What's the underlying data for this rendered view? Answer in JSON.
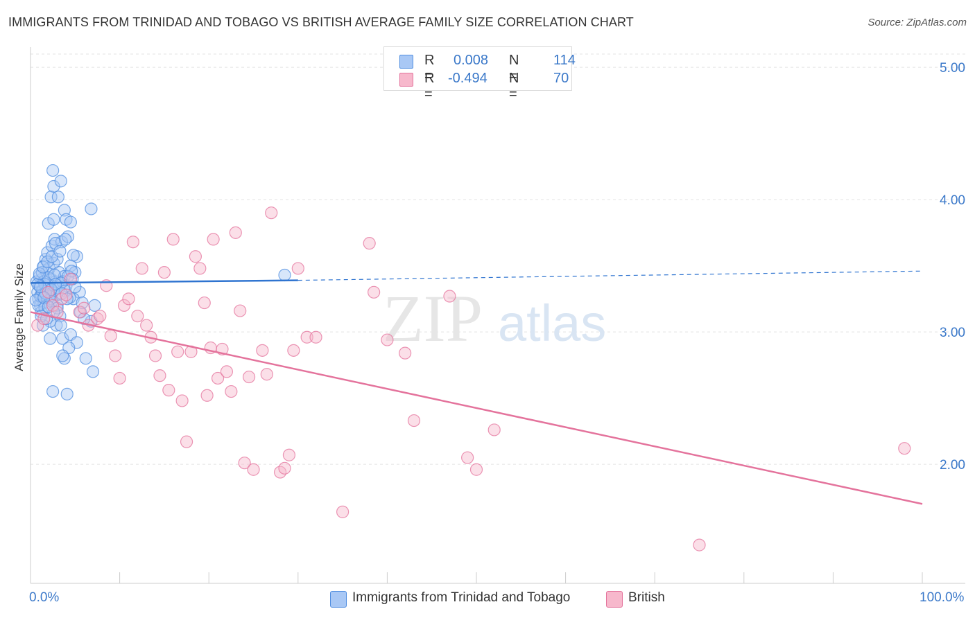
{
  "header": {
    "title": "IMMIGRANTS FROM TRINIDAD AND TOBAGO VS BRITISH AVERAGE FAMILY SIZE CORRELATION CHART",
    "source": "Source: ZipAtlas.com"
  },
  "legend": {
    "rows": [
      {
        "r_label": "R =",
        "r_value": "0.008",
        "n_label": "N =",
        "n_value": "114",
        "color": "#a9c8f5"
      },
      {
        "r_label": "R =",
        "r_value": "-0.494",
        "n_label": "N =",
        "n_value": "70",
        "color": "#f7b8cc"
      }
    ]
  },
  "watermark": {
    "zip": "ZIP",
    "atlas": "atlas"
  },
  "chart_data": {
    "type": "scatter",
    "ylabel": "Average Family Size",
    "xlim": [
      0,
      100
    ],
    "ylim": [
      1.1,
      5.1
    ],
    "x_tick_labels": {
      "min": "0.0%",
      "max": "100.0%"
    },
    "y_ticks": [
      2.0,
      3.0,
      4.0,
      5.0
    ],
    "y_tick_labels": [
      "2.00",
      "3.00",
      "4.00",
      "5.00"
    ],
    "grid": true,
    "legend_position": "top-center",
    "series": [
      {
        "name": "Immigrants from Trinidad and Tobago",
        "color": "#4f8de0",
        "fill": "#a9c8f5",
        "trend": {
          "x": [
            0,
            30
          ],
          "y": [
            3.37,
            3.39
          ],
          "dashed_to_x": 100,
          "dashed_to_y": 3.46
        },
        "points": [
          [
            0.8,
            3.3
          ],
          [
            0.9,
            3.25
          ],
          [
            1.0,
            3.35
          ],
          [
            1.1,
            3.2
          ],
          [
            1.2,
            3.28
          ],
          [
            1.3,
            3.4
          ],
          [
            1.4,
            3.32
          ],
          [
            1.5,
            3.22
          ],
          [
            0.7,
            3.38
          ],
          [
            1.0,
            3.42
          ],
          [
            1.2,
            3.15
          ],
          [
            1.6,
            3.3
          ],
          [
            1.8,
            3.45
          ],
          [
            2.0,
            3.35
          ],
          [
            1.5,
            3.5
          ],
          [
            1.7,
            3.55
          ],
          [
            2.2,
            3.25
          ],
          [
            2.5,
            3.3
          ],
          [
            2.3,
            3.4
          ],
          [
            2.8,
            3.38
          ],
          [
            3.0,
            3.2
          ],
          [
            2.1,
            3.48
          ],
          [
            2.6,
            3.52
          ],
          [
            3.2,
            3.45
          ],
          [
            1.9,
            3.6
          ],
          [
            2.4,
            3.65
          ],
          [
            2.7,
            3.7
          ],
          [
            3.5,
            3.68
          ],
          [
            4.2,
            3.72
          ],
          [
            3.0,
            3.55
          ],
          [
            4.5,
            3.5
          ],
          [
            5.0,
            3.45
          ],
          [
            3.8,
            3.42
          ],
          [
            4.0,
            3.35
          ],
          [
            5.5,
            3.3
          ],
          [
            4.8,
            3.25
          ],
          [
            3.3,
            3.12
          ],
          [
            2.9,
            3.05
          ],
          [
            2.2,
            3.08
          ],
          [
            3.6,
            2.95
          ],
          [
            4.5,
            2.98
          ],
          [
            5.2,
            2.92
          ],
          [
            3.8,
            2.8
          ],
          [
            4.3,
            2.88
          ],
          [
            2.5,
            2.55
          ],
          [
            4.1,
            2.53
          ],
          [
            5.6,
            3.15
          ],
          [
            6.8,
            3.08
          ],
          [
            6.2,
            2.8
          ],
          [
            7.0,
            2.7
          ],
          [
            7.2,
            3.2
          ],
          [
            2.0,
            3.82
          ],
          [
            2.6,
            3.85
          ],
          [
            3.8,
            3.92
          ],
          [
            4.0,
            3.85
          ],
          [
            4.5,
            3.83
          ],
          [
            2.3,
            4.02
          ],
          [
            3.1,
            4.02
          ],
          [
            2.6,
            4.1
          ],
          [
            3.4,
            4.14
          ],
          [
            2.5,
            4.22
          ],
          [
            6.8,
            3.93
          ],
          [
            2.8,
            3.67
          ],
          [
            3.9,
            3.7
          ],
          [
            5.2,
            3.57
          ],
          [
            4.8,
            3.58
          ],
          [
            1.6,
            3.18
          ],
          [
            1.4,
            3.05
          ],
          [
            2.9,
            3.28
          ],
          [
            3.2,
            3.33
          ],
          [
            3.6,
            3.38
          ],
          [
            4.2,
            3.42
          ],
          [
            4.6,
            3.46
          ],
          [
            1.3,
            3.45
          ],
          [
            1.5,
            3.38
          ],
          [
            1.9,
            3.33
          ],
          [
            2.1,
            3.27
          ],
          [
            2.4,
            3.23
          ],
          [
            3.0,
            3.18
          ],
          [
            0.9,
            3.2
          ],
          [
            1.1,
            3.27
          ],
          [
            1.3,
            3.31
          ],
          [
            1.6,
            3.36
          ],
          [
            2.0,
            3.41
          ],
          [
            2.7,
            3.43
          ],
          [
            3.4,
            3.37
          ],
          [
            3.9,
            3.31
          ],
          [
            4.4,
            3.26
          ],
          [
            5.0,
            3.34
          ],
          [
            1.2,
            3.12
          ],
          [
            1.8,
            3.1
          ],
          [
            2.6,
            3.15
          ],
          [
            5.8,
            3.22
          ],
          [
            6.0,
            3.1
          ],
          [
            2.2,
            2.95
          ],
          [
            3.6,
            2.82
          ],
          [
            0.6,
            3.24
          ],
          [
            0.8,
            3.36
          ],
          [
            1.0,
            3.44
          ],
          [
            1.4,
            3.49
          ],
          [
            1.9,
            3.53
          ],
          [
            2.4,
            3.57
          ],
          [
            3.3,
            3.61
          ],
          [
            4.7,
            3.4
          ],
          [
            1.7,
            3.29
          ],
          [
            2.3,
            3.32
          ],
          [
            2.8,
            3.36
          ],
          [
            3.5,
            3.29
          ],
          [
            4.1,
            3.25
          ],
          [
            1.1,
            3.34
          ],
          [
            1.5,
            3.26
          ],
          [
            2.0,
            3.19
          ],
          [
            28.5,
            3.43
          ],
          [
            3.4,
            3.05
          ]
        ]
      },
      {
        "name": "British",
        "color": "#e4739c",
        "fill": "#f7b8cc",
        "trend": {
          "x": [
            0,
            100
          ],
          "y": [
            3.15,
            1.7
          ]
        },
        "points": [
          [
            0.8,
            3.05
          ],
          [
            1.5,
            3.1
          ],
          [
            2.5,
            3.2
          ],
          [
            3.5,
            3.25
          ],
          [
            4.5,
            3.4
          ],
          [
            5.5,
            3.15
          ],
          [
            6.5,
            3.05
          ],
          [
            7.5,
            3.1
          ],
          [
            8.5,
            3.35
          ],
          [
            9.0,
            2.97
          ],
          [
            9.5,
            2.82
          ],
          [
            10.0,
            2.65
          ],
          [
            10.5,
            3.2
          ],
          [
            11.0,
            3.25
          ],
          [
            11.5,
            3.68
          ],
          [
            12.0,
            3.12
          ],
          [
            12.5,
            3.48
          ],
          [
            13.0,
            3.05
          ],
          [
            13.5,
            2.96
          ],
          [
            14.0,
            2.82
          ],
          [
            14.5,
            2.67
          ],
          [
            15.0,
            3.45
          ],
          [
            15.5,
            2.56
          ],
          [
            16.0,
            3.7
          ],
          [
            16.5,
            2.85
          ],
          [
            17.0,
            2.48
          ],
          [
            17.5,
            2.17
          ],
          [
            18.0,
            2.85
          ],
          [
            18.5,
            3.57
          ],
          [
            19.0,
            3.48
          ],
          [
            19.5,
            3.22
          ],
          [
            19.8,
            2.52
          ],
          [
            20.5,
            3.7
          ],
          [
            21.0,
            2.65
          ],
          [
            21.5,
            2.87
          ],
          [
            22.0,
            2.7
          ],
          [
            22.5,
            2.55
          ],
          [
            23.0,
            3.75
          ],
          [
            23.5,
            3.16
          ],
          [
            24.0,
            2.01
          ],
          [
            25.0,
            1.96
          ],
          [
            26.0,
            2.86
          ],
          [
            27.0,
            3.9
          ],
          [
            28.0,
            1.94
          ],
          [
            28.5,
            1.97
          ],
          [
            29.0,
            2.07
          ],
          [
            29.5,
            2.86
          ],
          [
            30.0,
            3.48
          ],
          [
            31.0,
            2.96
          ],
          [
            32.0,
            2.96
          ],
          [
            35.0,
            1.64
          ],
          [
            38.0,
            3.67
          ],
          [
            38.5,
            3.3
          ],
          [
            40.0,
            2.94
          ],
          [
            42.0,
            2.84
          ],
          [
            43.0,
            2.33
          ],
          [
            47.0,
            3.27
          ],
          [
            49.0,
            2.05
          ],
          [
            50.0,
            1.96
          ],
          [
            52.0,
            2.26
          ],
          [
            75.0,
            1.39
          ],
          [
            98.0,
            2.12
          ],
          [
            2.0,
            3.3
          ],
          [
            6.0,
            3.18
          ],
          [
            7.8,
            3.12
          ],
          [
            3.0,
            3.15
          ],
          [
            4.0,
            3.28
          ],
          [
            24.5,
            2.66
          ],
          [
            26.5,
            2.68
          ],
          [
            20.2,
            2.88
          ]
        ]
      }
    ]
  }
}
